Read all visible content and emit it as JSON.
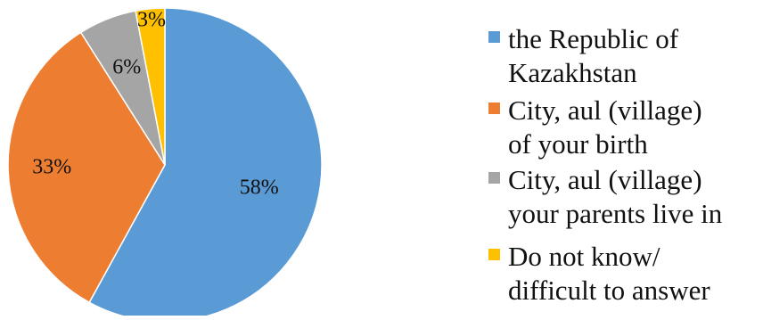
{
  "chart_data": {
    "type": "pie",
    "title": "",
    "slices": [
      {
        "label": "the Republic of Kazakhstan",
        "value": 58,
        "display": "58%",
        "color": "#5b9bd5"
      },
      {
        "label": "City, aul (village) of your birth",
        "value": 33,
        "display": "33%",
        "color": "#ed7d31"
      },
      {
        "label": "City, aul (village) your parents live in",
        "value": 6,
        "display": "6%",
        "color": "#a5a5a5"
      },
      {
        "label": "Do not know/ difficult to answer",
        "value": 3,
        "display": "3%",
        "color": "#ffc000"
      }
    ],
    "legend": {
      "position": "right",
      "entries": [
        {
          "lines": [
            "the Republic of",
            "Kazakhstan"
          ]
        },
        {
          "lines": [
            "City, aul (village)",
            "of your birth"
          ]
        },
        {
          "lines": [
            "City, aul (village)",
            "your parents live in"
          ]
        },
        {
          "lines": [
            "Do not know/",
            "difficult to answer"
          ]
        }
      ]
    },
    "start_angle_deg": 0,
    "direction": "clockwise"
  }
}
